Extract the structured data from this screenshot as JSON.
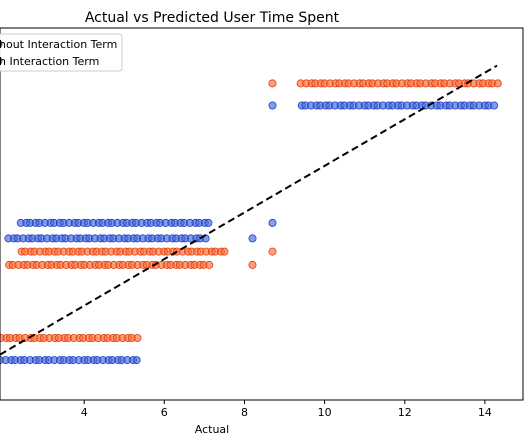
{
  "chart_data": {
    "type": "scatter",
    "title": "Actual vs Predicted User Time Spent",
    "xlabel": "Actual",
    "ylabel": "",
    "xlim": [
      1.9,
      14.95
    ],
    "ylim": [
      -0.8,
      16.0
    ],
    "xticks": [
      4,
      6,
      8,
      10,
      12,
      14
    ],
    "xtick_labels": [
      "4",
      "6",
      "8",
      "10",
      12,
      14
    ],
    "grid": false,
    "legend_placement": "top-left",
    "legend": [
      "hout Interaction Term",
      "h Interaction Term"
    ],
    "colors": {
      "series_a": "#4169e1",
      "series_b": "#ff6a33",
      "line": "#000000"
    },
    "reference_line": {
      "style": "dashed",
      "from": [
        1.9,
        1.25
      ],
      "to": [
        14.3,
        14.3
      ]
    },
    "series": [
      {
        "name": "hout Interaction Term",
        "color": "#4169e1",
        "groups": [
          {
            "y": 1.0,
            "x_min": 1.9,
            "x_max": 5.3,
            "isolated": []
          },
          {
            "y": 6.5,
            "x_min": 2.1,
            "x_max": 7.0,
            "isolated": [
              8.2
            ]
          },
          {
            "y": 7.2,
            "x_min": 2.4,
            "x_max": 7.1,
            "isolated": [
              8.7
            ]
          },
          {
            "y": 12.5,
            "x_min": 9.4,
            "x_max": 14.2,
            "isolated": [
              8.7
            ]
          }
        ]
      },
      {
        "name": "h Interaction Term",
        "color": "#ff6a33",
        "groups": [
          {
            "y": 2.0,
            "x_min": 1.9,
            "x_max": 5.3,
            "isolated": []
          },
          {
            "y": 5.3,
            "x_min": 2.1,
            "x_max": 7.1,
            "isolated": [
              8.2
            ]
          },
          {
            "y": 5.9,
            "x_min": 2.4,
            "x_max": 7.5,
            "isolated": [
              8.7
            ]
          },
          {
            "y": 13.5,
            "x_min": 9.4,
            "x_max": 14.3,
            "isolated": [
              8.7
            ]
          }
        ]
      }
    ]
  }
}
